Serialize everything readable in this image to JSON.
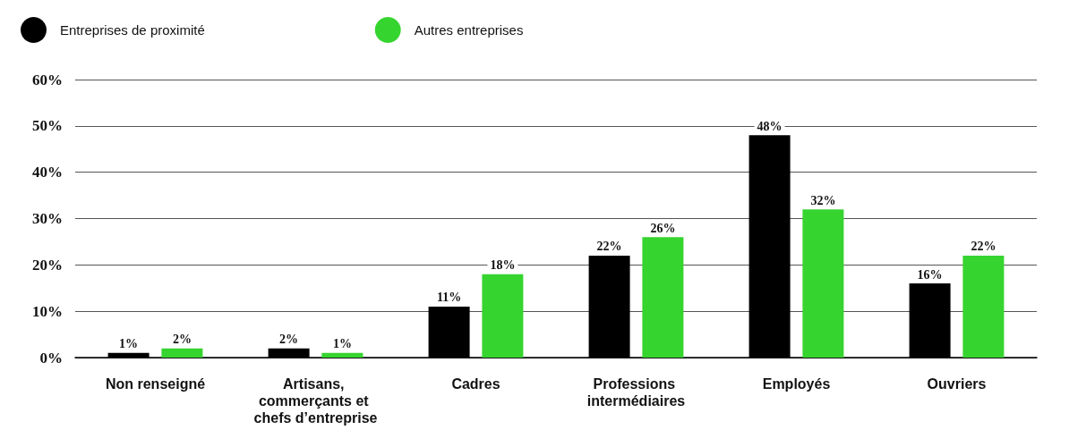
{
  "chart_data": {
    "type": "bar",
    "categories": [
      "Non renseigné",
      "Artisans, commerçants et chefs d’entreprise",
      "Cadres",
      "Professions intermédiaires",
      "Employés",
      "Ouvriers"
    ],
    "series": [
      {
        "name": "Entreprises de proximité",
        "color": "#000000",
        "values": [
          1,
          2,
          11,
          22,
          48,
          16
        ],
        "value_labels": [
          "1%",
          "2%",
          "11%",
          "22%",
          "48%",
          "16%"
        ]
      },
      {
        "name": "Autres entreprises",
        "color": "#36d42f",
        "values": [
          2,
          1,
          18,
          26,
          32,
          22
        ],
        "value_labels": [
          "2%",
          "1%",
          "18%",
          "26%",
          "32%",
          "22%"
        ]
      }
    ],
    "ylim": [
      0,
      60
    ],
    "yticks": [
      {
        "value": 0,
        "label": "0%"
      },
      {
        "value": 10,
        "label": "10%"
      },
      {
        "value": 20,
        "label": "20%"
      },
      {
        "value": 30,
        "label": "30%"
      },
      {
        "value": 40,
        "label": "40%"
      },
      {
        "value": 50,
        "label": "50%"
      },
      {
        "value": 60,
        "label": "60%"
      }
    ],
    "grid": "y",
    "legend": "top left"
  }
}
